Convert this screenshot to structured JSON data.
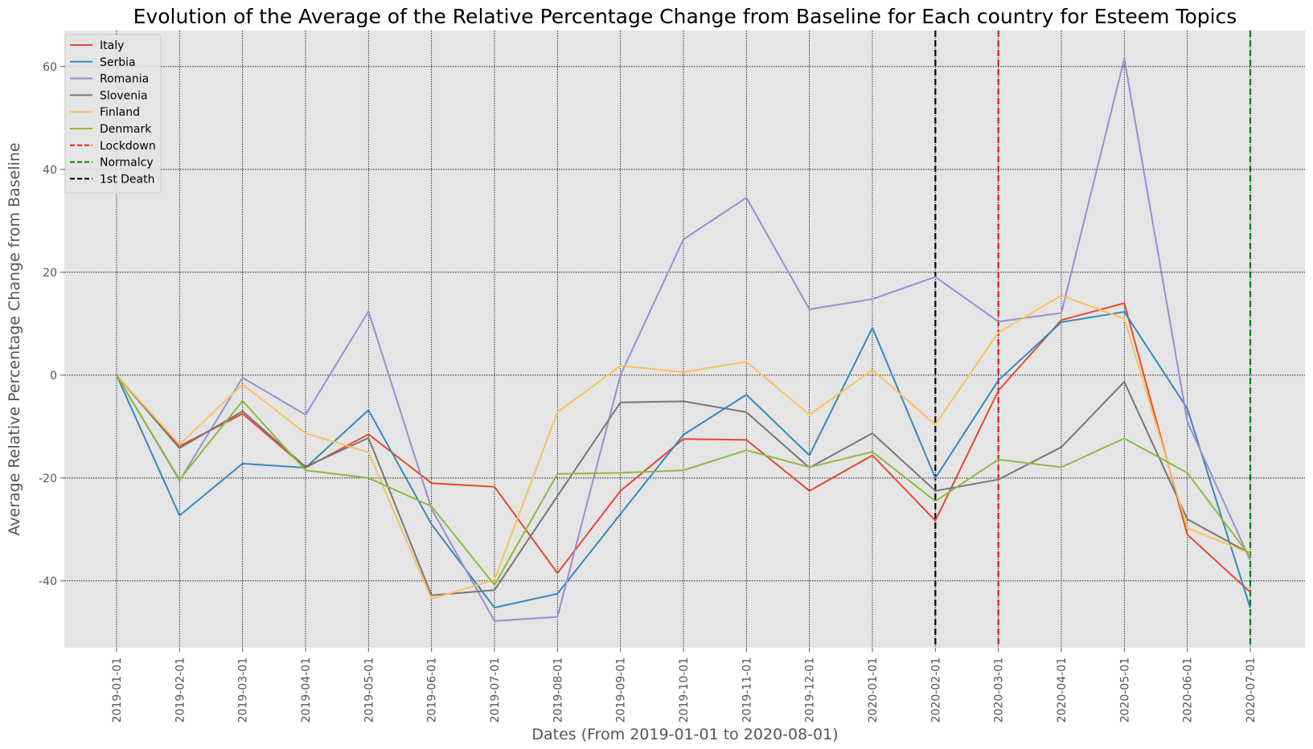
{
  "chart_data": {
    "type": "line",
    "title": "Evolution of the Average of the Relative Percentage Change from Baseline for Each country for Esteem Topics",
    "xlabel": "Dates (From 2019-01-01 to 2020-08-01)",
    "ylabel": "Average Relative Percentage Change from Baseline",
    "x": [
      "2019-01-01",
      "2019-02-01",
      "2019-03-01",
      "2019-04-01",
      "2019-05-01",
      "2019-06-01",
      "2019-07-01",
      "2019-08-01",
      "2019-09-01",
      "2019-10-01",
      "2019-11-01",
      "2019-12-01",
      "2020-01-01",
      "2020-02-01",
      "2020-03-01",
      "2020-04-01",
      "2020-05-01",
      "2020-06-01",
      "2020-07-01"
    ],
    "ylim": [
      -53,
      67
    ],
    "yticks": [
      -40,
      -20,
      0,
      20,
      40,
      60
    ],
    "grid": true,
    "legend_position": "top-left",
    "series": [
      {
        "name": "Italy",
        "color": "#E24A33",
        "values": [
          0,
          -13.8,
          -7.5,
          -18,
          -11.5,
          -21,
          -21.7,
          -38.5,
          -22.5,
          -12.4,
          -12.6,
          -22.5,
          -15.6,
          -28.3,
          -3,
          10.7,
          14,
          -31,
          -42.2
        ]
      },
      {
        "name": "Serbia",
        "color": "#348ABD",
        "values": [
          0,
          -27.3,
          -17.2,
          -18,
          -6.8,
          -29,
          -45.2,
          -42.5,
          -27,
          -11.6,
          -3.8,
          -15.6,
          9.2,
          -20,
          -1,
          10.3,
          12.3,
          -6.5,
          -45.3
        ]
      },
      {
        "name": "Romania",
        "color": "#988ED5",
        "values": [
          0,
          -20.5,
          -0.5,
          -7.7,
          12.4,
          -26,
          -47.8,
          -47,
          0,
          26.4,
          34.5,
          12.8,
          14.8,
          19.1,
          10.4,
          12.1,
          61.5,
          -9,
          -36
        ]
      },
      {
        "name": "Slovenia",
        "color": "#777777",
        "values": [
          0,
          -14.2,
          -7,
          -17.8,
          -12.2,
          -42.8,
          -41.8,
          -23.5,
          -5.3,
          -5.1,
          -7.2,
          -18,
          -11.3,
          -22.5,
          -20.3,
          -14,
          -1.3,
          -28,
          -34.7
        ]
      },
      {
        "name": "Finland",
        "color": "#FBC15E",
        "values": [
          0,
          -13.5,
          -1.8,
          -11.3,
          -15,
          -43.5,
          -39.8,
          -7.2,
          1.8,
          0.6,
          2.6,
          -7.7,
          1,
          -9.6,
          8.3,
          15.5,
          11,
          -29.7,
          -34.7
        ]
      },
      {
        "name": "Denmark",
        "color": "#8EBA42",
        "values": [
          0,
          -20.3,
          -5,
          -18.5,
          -20,
          -25.5,
          -40.8,
          -19.2,
          -19,
          -18.5,
          -14.6,
          -17.9,
          -14.9,
          -24.5,
          -16.4,
          -17.9,
          -12.3,
          -19,
          -35.3
        ]
      }
    ],
    "vlines": [
      {
        "name": "Lockdown",
        "color": "#E41A1C",
        "x": "2020-03-01"
      },
      {
        "name": "Normalcy",
        "color": "#008000",
        "x": "2020-07-01"
      },
      {
        "name": "1st Death",
        "color": "#000000",
        "x": "2020-02-01"
      }
    ]
  }
}
